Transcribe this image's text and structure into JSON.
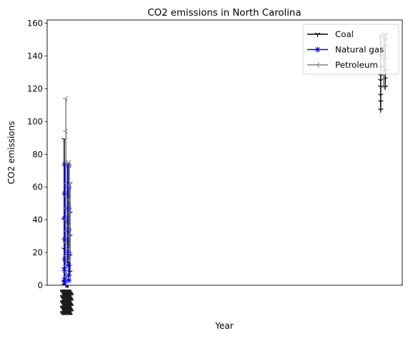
{
  "chart_data": {
    "type": "line",
    "title": "CO2 emissions in North Carolina",
    "xlabel": "Year",
    "ylabel": "CO2 emissions",
    "ylim": [
      0,
      162
    ],
    "yticks": [
      0,
      20,
      40,
      60,
      80,
      100,
      120,
      140,
      160
    ],
    "legend_position": "top-right",
    "series": [
      {
        "name": "Coal",
        "color": "#000000",
        "marker": "tri_down",
        "groups": [
          {
            "x": 0.0,
            "values": [
              89,
              40,
              22,
              10,
              2,
              0
            ]
          },
          {
            "x": 0.6,
            "values": [
              74,
              55,
              38,
              27,
              14
            ]
          },
          {
            "x": 1.0,
            "values": [
              62,
              44,
              30,
              18,
              8
            ]
          },
          {
            "x": 55.7,
            "values": [
              107,
              112,
              116,
              121,
              125,
              128,
              133,
              140,
              152
            ]
          },
          {
            "x": 56.5,
            "values": [
              121,
              126,
              131,
              138,
              146,
              150,
              153
            ]
          }
        ]
      },
      {
        "name": "Natural gas",
        "color": "#0000ff",
        "marker": "star",
        "groups": [
          {
            "x": 0.1,
            "values": [
              74,
              56,
              41,
              28,
              16,
              9,
              4,
              2
            ]
          },
          {
            "x": 0.8,
            "values": [
              73,
              60,
              47,
              34,
              20,
              12,
              6,
              3
            ]
          }
        ]
      },
      {
        "name": "Petroleum",
        "color": "#808080",
        "marker": "tri_left",
        "groups": [
          {
            "x": 0.3,
            "values": [
              114,
              94,
              75,
              62,
              54,
              47,
              40,
              33,
              26,
              18,
              12,
              8,
              5
            ]
          },
          {
            "x": 0.9,
            "values": [
              75,
              61,
              52,
              44,
              36,
              30,
              22,
              15
            ]
          },
          {
            "x": 56.2,
            "values": [
              154,
              149,
              144,
              139,
              133,
              128,
              121
            ]
          }
        ]
      }
    ]
  }
}
